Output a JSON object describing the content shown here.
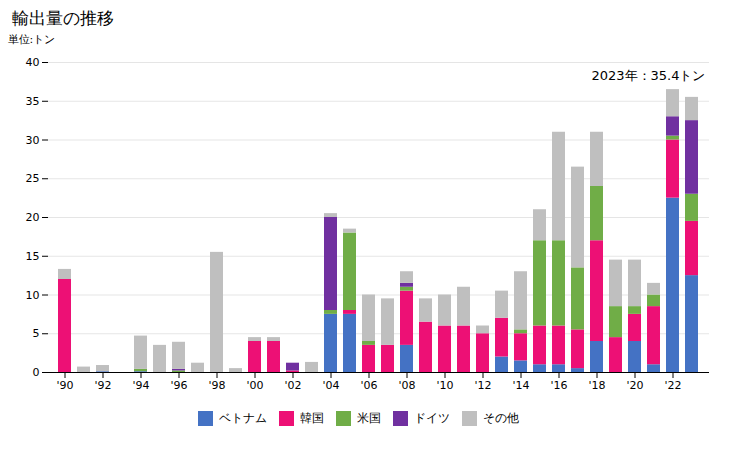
{
  "chart_data": {
    "type": "bar",
    "title": "輸出量の推移",
    "ylabel": "単位:トン",
    "annotation": "2023年：35.4トン",
    "stacked": true,
    "grid": true,
    "legend": "bottom",
    "categories": [
      "'90",
      null,
      "'92",
      null,
      "'94",
      null,
      "'96",
      null,
      "'98",
      null,
      "'00",
      null,
      "'02",
      null,
      "'04",
      null,
      "'06",
      null,
      "'08",
      null,
      "'10",
      null,
      "'12",
      null,
      "'14",
      null,
      "'16",
      null,
      "'18",
      null,
      "'20",
      null,
      "'22",
      null
    ],
    "series": [
      {
        "name": "ベトナム",
        "color": "#4472C4",
        "values": [
          0.0,
          0.0,
          0.1,
          0.0,
          0.1,
          0.0,
          0.0,
          0.0,
          0.0,
          0.0,
          0.0,
          0.0,
          0.0,
          0.0,
          7.5,
          7.5,
          0.0,
          0.0,
          3.5,
          0.0,
          0.0,
          0.0,
          0.0,
          2.0,
          1.5,
          1.0,
          1.0,
          0.5,
          4.0,
          0.0,
          4.0,
          1.0,
          22.5,
          12.5
        ]
      },
      {
        "name": "韓国",
        "color": "#ED1075",
        "values": [
          12.0,
          0.0,
          0.0,
          0.0,
          0.0,
          0.0,
          0.0,
          0.0,
          0.0,
          0.0,
          4.0,
          4.0,
          0.2,
          0.0,
          0.0,
          0.5,
          3.5,
          3.5,
          7.0,
          6.5,
          6.0,
          6.0,
          5.0,
          5.0,
          3.5,
          5.0,
          5.0,
          5.0,
          13.0,
          4.5,
          3.5,
          7.5,
          7.5,
          7.0
        ]
      },
      {
        "name": "米国",
        "color": "#70AD47",
        "values": [
          0.0,
          0.0,
          0.0,
          0.0,
          0.3,
          0.0,
          0.2,
          0.0,
          0.0,
          0.0,
          0.0,
          0.0,
          0.0,
          0.0,
          0.5,
          10.0,
          0.5,
          0.0,
          0.5,
          0.0,
          0.0,
          0.0,
          0.0,
          0.0,
          0.5,
          11.0,
          11.0,
          8.0,
          7.0,
          4.0,
          1.0,
          1.5,
          0.5,
          3.5
        ]
      },
      {
        "name": "ドイツ",
        "color": "#7030A0",
        "values": [
          0.0,
          0.0,
          0.0,
          0.0,
          0.0,
          0.0,
          0.2,
          0.0,
          0.0,
          0.0,
          0.0,
          0.0,
          1.0,
          0.0,
          12.0,
          0.0,
          0.0,
          0.0,
          0.5,
          0.0,
          0.0,
          0.0,
          0.0,
          0.0,
          0.0,
          0.0,
          0.0,
          0.0,
          0.0,
          0.0,
          0.0,
          0.0,
          2.5,
          9.5
        ]
      },
      {
        "name": "その他",
        "color": "#BFBFBF",
        "values": [
          1.3,
          0.7,
          0.8,
          0.0,
          4.3,
          3.5,
          3.5,
          1.2,
          15.5,
          0.5,
          0.5,
          0.5,
          0.0,
          1.3,
          0.5,
          0.5,
          6.0,
          6.0,
          1.5,
          3.0,
          4.0,
          5.0,
          1.0,
          3.5,
          7.5,
          4.0,
          14.0,
          13.0,
          7.0,
          6.0,
          6.0,
          1.5,
          3.5,
          3.0
        ]
      }
    ],
    "ylim": [
      0,
      40
    ],
    "yticks": [
      0,
      5,
      10,
      15,
      20,
      25,
      30,
      35,
      40
    ]
  }
}
